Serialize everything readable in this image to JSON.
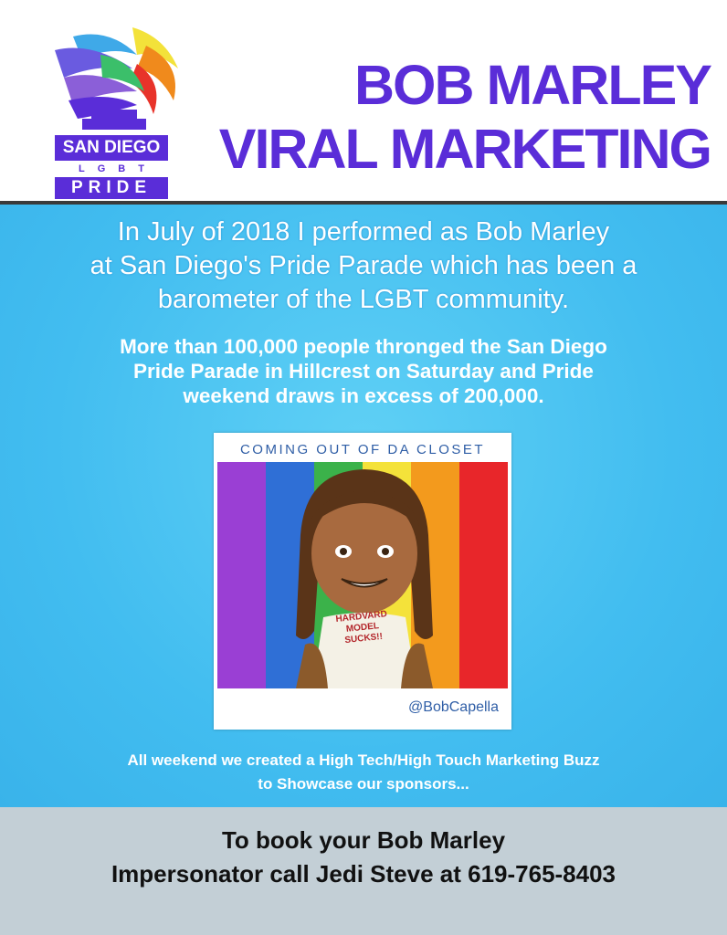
{
  "logo": {
    "line1": "SAN DIEGO",
    "line2": "LGBT",
    "line3": "PRIDE"
  },
  "title": {
    "line1": "BOB MARLEY",
    "line2": "VIRAL MARKETING"
  },
  "intro": {
    "line1": "In July of 2018 I performed as Bob Marley",
    "line2": "at San Diego's Pride Parade which has been a",
    "line3": "barometer of the LGBT community."
  },
  "stats": {
    "line1": "More than 100,000 people thronged the San Diego",
    "line2": "Pride Parade in Hillcrest on Saturday and Pride",
    "line3": "weekend draws in excess of 200,000."
  },
  "card": {
    "heading": "COMING OUT OF DA CLOSET",
    "shirt_line1": "HARDVARD",
    "shirt_line2": "MODEL",
    "shirt_line3": "SUCKS!!",
    "handle": "@BobCapella"
  },
  "buzz": {
    "line1": "All weekend we created a High Tech/High Touch Marketing Buzz",
    "line2": "to Showcase our sponsors..."
  },
  "footer": {
    "line1": "To book your Bob Marley",
    "line2": "Impersonator call Jedi Steve at 619-765-8403"
  },
  "colors": {
    "title_purple": "#5a2dd8",
    "background_blue": "#42bdf0",
    "footer_gray": "#c3cfd6"
  }
}
